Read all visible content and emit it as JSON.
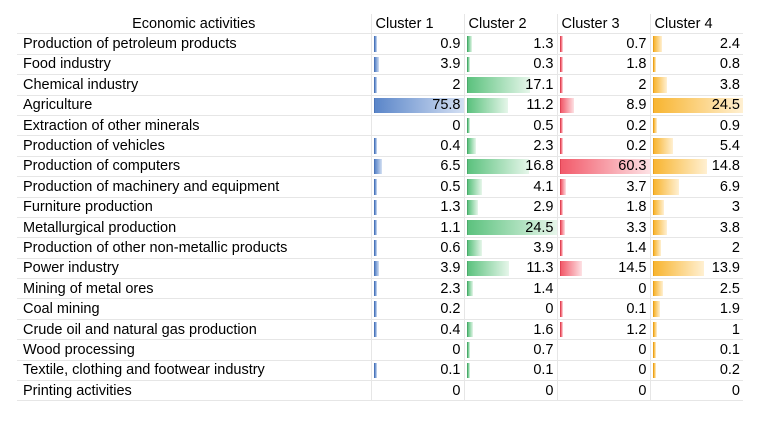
{
  "chart_data": {
    "type": "table",
    "column_header": "Economic activities",
    "series": [
      {
        "name": "Cluster 1",
        "color": "#5b86c9"
      },
      {
        "name": "Cluster 2",
        "color": "#5cc27e"
      },
      {
        "name": "Cluster 3",
        "color": "#f25a6a"
      },
      {
        "name": "Cluster 4",
        "color": "#f8b531"
      }
    ],
    "rows": [
      {
        "activity": "Production of petroleum products",
        "values": [
          "0.9",
          "1.3",
          "0.7",
          "2.4"
        ]
      },
      {
        "activity": "Food industry",
        "values": [
          "3.9",
          "0.3",
          "1.8",
          "0.8"
        ]
      },
      {
        "activity": "Chemical industry",
        "values": [
          "2",
          "17.1",
          "2",
          "3.8"
        ]
      },
      {
        "activity": "Agriculture",
        "values": [
          "75.8",
          "11.2",
          "8.9",
          "24.5"
        ]
      },
      {
        "activity": "Extraction of other minerals",
        "values": [
          "0",
          "0.5",
          "0.2",
          "0.9"
        ]
      },
      {
        "activity": "Production of vehicles",
        "values": [
          "0.4",
          "2.3",
          "0.2",
          "5.4"
        ]
      },
      {
        "activity": "Production of computers",
        "values": [
          "6.5",
          "16.8",
          "60.3",
          "14.8"
        ]
      },
      {
        "activity": "Production of machinery and equipment",
        "values": [
          "0.5",
          "4.1",
          "3.7",
          "6.9"
        ]
      },
      {
        "activity": "Furniture production",
        "values": [
          "1.3",
          "2.9",
          "1.8",
          "3"
        ]
      },
      {
        "activity": "Metallurgical production",
        "values": [
          "1.1",
          "24.5",
          "3.3",
          "3.8"
        ]
      },
      {
        "activity": "Production of other non-metallic products",
        "values": [
          "0.6",
          "3.9",
          "1.4",
          "2"
        ]
      },
      {
        "activity": "Power industry",
        "values": [
          "3.9",
          "11.3",
          "14.5",
          "13.9"
        ]
      },
      {
        "activity": "Mining of metal ores",
        "values": [
          "2.3",
          "1.4",
          "0",
          "2.5"
        ]
      },
      {
        "activity": "Coal mining",
        "values": [
          "0.2",
          "0",
          "0.1",
          "1.9"
        ]
      },
      {
        "activity": "Crude oil and natural gas production",
        "values": [
          "0.4",
          "1.6",
          "1.2",
          "1"
        ]
      },
      {
        "activity": "Wood processing",
        "values": [
          "0",
          "0.7",
          "0",
          "0.1"
        ]
      },
      {
        "activity": "Textile, clothing and footwear industry",
        "values": [
          "0.1",
          "0.1",
          "0",
          "0.2"
        ]
      },
      {
        "activity": "Printing activities",
        "values": [
          "0",
          "0",
          "0",
          "0"
        ]
      }
    ]
  }
}
